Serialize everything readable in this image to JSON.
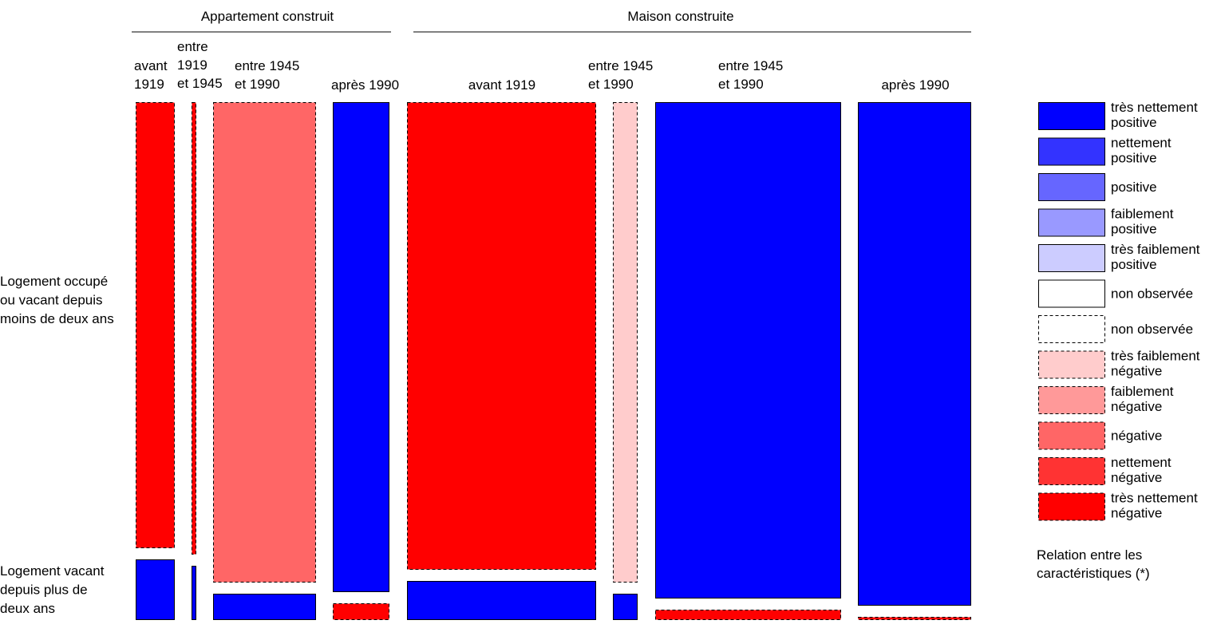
{
  "chart_data": {
    "type": "mosaic",
    "title": "",
    "groups": [
      {
        "label": "Appartement construit",
        "periods": [
          {
            "label": [
              "avant",
              "1919"
            ],
            "cells": {
              "top": "très nettement négative",
              "bottom": "très nettement positive"
            }
          },
          {
            "label": [
              "entre",
              "1919",
              "et 1945"
            ],
            "cells": {
              "top": "très nettement négative",
              "bottom": "très nettement positive"
            }
          },
          {
            "label": [
              "entre 1945",
              "et 1990"
            ],
            "cells": {
              "top": "négative",
              "bottom": "très nettement positive"
            }
          },
          {
            "label": [
              "après 1990"
            ],
            "cells": {
              "top": "très nettement positive",
              "bottom": "très nettement négative"
            }
          }
        ]
      },
      {
        "label": "Maison construite",
        "periods": [
          {
            "label": [
              "avant 1919"
            ],
            "cells": {
              "top": "très nettement négative",
              "bottom": "très nettement positive"
            }
          },
          {
            "label": [
              "entre 1945",
              "et 1990"
            ],
            "cells": {
              "top": "très faiblement négative",
              "bottom": "très nettement positive"
            }
          },
          {
            "label": [
              "entre 1945",
              "et 1990"
            ],
            "cells": {
              "top": "très nettement positive",
              "bottom": "très nettement négative"
            }
          },
          {
            "label": [
              "après 1990"
            ],
            "cells": {
              "top": "très nettement positive",
              "bottom": "très nettement négative"
            }
          }
        ]
      }
    ],
    "rows": [
      {
        "key": "top",
        "label": [
          "Logement occupé",
          "ou vacant depuis",
          "moins de deux ans"
        ]
      },
      {
        "key": "bottom",
        "label": [
          "Logement vacant",
          "depuis plus de",
          "deux ans"
        ]
      }
    ],
    "legend": {
      "placement": "right",
      "entries": [
        {
          "label": [
            "très nettement",
            "positive"
          ],
          "color": "#0000ff",
          "dashed": false
        },
        {
          "label": [
            "nettement",
            "positive"
          ],
          "color": "#3333ff",
          "dashed": false
        },
        {
          "label": [
            "positive"
          ],
          "color": "#6666ff",
          "dashed": false
        },
        {
          "label": [
            "faiblement",
            "positive"
          ],
          "color": "#9999ff",
          "dashed": false
        },
        {
          "label": [
            "très faiblement",
            "positive"
          ],
          "color": "#ccccff",
          "dashed": false
        },
        {
          "label": [
            "non observée"
          ],
          "color": "#ffffff",
          "dashed": false
        },
        {
          "label": [
            "non observée"
          ],
          "color": "#ffffff",
          "dashed": true
        },
        {
          "label": [
            "très faiblement",
            "négative"
          ],
          "color": "#ffcccc",
          "dashed": true
        },
        {
          "label": [
            "faiblement",
            "négative"
          ],
          "color": "#ff9999",
          "dashed": true
        },
        {
          "label": [
            "négative"
          ],
          "color": "#ff6666",
          "dashed": true
        },
        {
          "label": [
            "nettement",
            "négative"
          ],
          "color": "#ff3333",
          "dashed": true
        },
        {
          "label": [
            "très nettement",
            "négative"
          ],
          "color": "#ff0000",
          "dashed": true
        }
      ],
      "caption": [
        "Relation entre les",
        "caractéristiques (*)"
      ]
    }
  }
}
